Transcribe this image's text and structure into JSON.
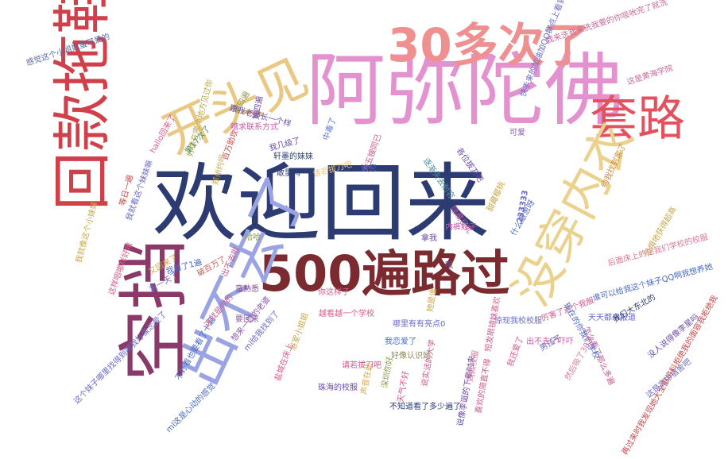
{
  "words": [
    {
      "text": "欢迎回来",
      "color": "#2c3b72"
    },
    {
      "text": "阿弥陀佛",
      "color": "#e492cf"
    },
    {
      "text": "500遍路过",
      "color": "#7b2a2f"
    },
    {
      "text": "出不去了",
      "color": "#9aa4e4"
    },
    {
      "text": "空挡",
      "color": "#8a3968"
    },
    {
      "text": "回款拖鞋",
      "color": "#d0404a"
    },
    {
      "text": "开头见",
      "color": "#eac882"
    },
    {
      "text": "30多次了",
      "color": "#f08f8f"
    },
    {
      "text": "套路",
      "color": "#e4515e"
    },
    {
      "text": "没穿内衣",
      "color": "#ead28e"
    },
    {
      "text": "感觉这个小姐姐蛮可爱的",
      "color": "#5a6aa8"
    },
    {
      "text": "快手来的加油加QQ群点上看到的",
      "color": "#6a6ac8"
    },
    {
      "text": "我来洗我来洗我要的你吸吮完了就洗",
      "color": "#c86a9a"
    },
    {
      "text": "这是黄海学院",
      "color": "#c86a9a"
    },
    {
      "text": "约我找到家了",
      "color": "#d08a3a"
    },
    {
      "text": "第四遍",
      "color": "#8a9a4a"
    },
    {
      "text": "跟我老婆长一个样",
      "color": "#6a4aa8"
    },
    {
      "text": "嘈求联系方式",
      "color": "#c85aa8"
    },
    {
      "text": "好像在哪个地方见过你",
      "color": "#b8a84a"
    },
    {
      "text": "我几级了",
      "color": "#6a4aa8"
    },
    {
      "text": "中毒了",
      "color": "#5a7ad8"
    },
    {
      "text": "可爱",
      "color": "#8a5aa8"
    },
    {
      "text": "轩墨的妹妹",
      "color": "#2c3b72"
    },
    {
      "text": "hallo回来了",
      "color": "#d85a8a"
    },
    {
      "text": "第17次了",
      "color": "#4a8a5a"
    },
    {
      "text": "百万助攻",
      "color": "#c8484a"
    },
    {
      "text": "方五嫂同已",
      "color": "#c85a8a"
    },
    {
      "text": "逐渐失去耐容",
      "color": "#4a8a9a"
    },
    {
      "text": "各位拔刀吧",
      "color": "#6a4aa8"
    },
    {
      "text": "敢里吗",
      "color": "#2c3b72"
    },
    {
      "text": "请若拔刀吧",
      "color": "#eac882"
    },
    {
      "text": "讲究",
      "color": "#4a6ac8"
    },
    {
      "text": "隐藏巨乳",
      "color": "#c85aa8"
    },
    {
      "text": "甜藏樱桃",
      "color": "#c8a84a"
    },
    {
      "text": "什么意思呀",
      "color": "#4a6ac8"
    },
    {
      "text": "233333",
      "color": "#6a6ac8"
    },
    {
      "text": "内裤好子",
      "color": "#c85aa8"
    },
    {
      "text": "哈哈",
      "color": "#8a9a4a"
    },
    {
      "text": "拿我",
      "color": "#6a4aa8"
    },
    {
      "text": "后面床上的是我们学校的校服",
      "color": "#d87a9a"
    },
    {
      "text": "谁可以给我这个妹子QQ啊我想养她",
      "color": "#4a6ac8"
    },
    {
      "text": "我看了1遍",
      "color": "#4a6ac8"
    },
    {
      "text": "出不去啦",
      "color": "#c85a8a"
    },
    {
      "text": "又回来了",
      "color": "#c8a84a"
    },
    {
      "text": "破百万了",
      "color": "#c85a5a"
    },
    {
      "text": "看一天了",
      "color": "#6a6ac8"
    },
    {
      "text": "越看越一个学校",
      "color": "#d85a8a"
    },
    {
      "text": "这样咽哪样好难",
      "color": "#d85a8a"
    },
    {
      "text": "惊现我校校服",
      "color": "#6a6ac8"
    },
    {
      "text": "好像认识她",
      "color": "#8a8a5a"
    },
    {
      "text": "我恋爱了",
      "color": "#4a6ac8"
    },
    {
      "text": "哪里有有亮点0",
      "color": "#6a6ac8"
    },
    {
      "text": "这个妹子哪里找得到啊我好像恋爱了",
      "color": "#6a6ac8"
    },
    {
      "text": "我就像这个小妹妹",
      "color": "#c8a84a"
    },
    {
      "text": "我还爱了",
      "color": "#d85a8a"
    },
    {
      "text": "男孩子",
      "color": "#6a6ac8"
    },
    {
      "text": "厉害了这个我服",
      "color": "#d85a8a"
    },
    {
      "text": "出不去了吓吓",
      "color": "#c85aa8"
    },
    {
      "text": "怎么看了那么多遍",
      "color": "#c85a8a"
    },
    {
      "text": "天天都来报道",
      "color": "#6a6ac8"
    },
    {
      "text": "现在的你我们学校",
      "color": "#4a6ac8"
    },
    {
      "text": "我们大东北的",
      "color": "#2c3b72"
    },
    {
      "text": "没人说得像李星吗",
      "color": "#6a4aa8"
    },
    {
      "text": "这是高中宿舍吧",
      "color": "#6a6ac8"
    },
    {
      "text": "然后吸了30几",
      "color": "#d87a9a"
    },
    {
      "text": "再过来时我发现她大全部资料拒绝我的面容我拒绝我",
      "color": "#c8484a"
    },
    {
      "text": "恐惧地获得超高",
      "color": "#c8a84a"
    },
    {
      "text": "哦",
      "color": "#6a4aa8"
    },
    {
      "text": "蛮熟悉",
      "color": "#8a4a8a"
    },
    {
      "text": "不好看也要看了十遍",
      "color": "#4a6ac8"
    },
    {
      "text": "想来一口的老婆",
      "color": "#8a5aa8"
    },
    {
      "text": "ml给我找到了",
      "color": "#6a6ac8"
    },
    {
      "text": "ml这是心动的感觉",
      "color": "#4a6ac8"
    },
    {
      "text": "我就看这个妹妹嘛",
      "color": "#6a6ac8"
    },
    {
      "text": "浴室小姐姐",
      "color": "#c8a84a"
    },
    {
      "text": "盐城在床上",
      "color": "#d85a8a"
    },
    {
      "text": "珠海的校服",
      "color": "#6a4aa8"
    },
    {
      "text": "深圳你好",
      "color": "#8a9a4a"
    },
    {
      "text": "请若拔刀吧",
      "color": "#c85a8a"
    },
    {
      "text": "声音在此",
      "color": "#d8a84a"
    },
    {
      "text": "天气不好",
      "color": "#d85a8a"
    },
    {
      "text": "说实话的大学",
      "color": "#c85a8a"
    },
    {
      "text": "不知道看了多少遍了",
      "color": "#2c3b72"
    },
    {
      "text": "说像李诞的下辈时来",
      "color": "#6a4aa8"
    },
    {
      "text": "喜欢的简直不得",
      "color": "#c85a8a"
    },
    {
      "text": "短发眼镜妹喜欢",
      "color": "#d85a8a"
    },
    {
      "text": "同款校服",
      "color": "#d87a9a"
    },
    {
      "text": "她是谁",
      "color": "#c8a84a"
    },
    {
      "text": "第四遍",
      "color": "#6a4aa8"
    },
    {
      "text": "要回来",
      "color": "#8a5aa8"
    },
    {
      "text": "这就是你的",
      "color": "#c85a8a"
    },
    {
      "text": "你这样子",
      "color": "#d85a8a"
    },
    {
      "text": "等日一遍",
      "color": "#c8484a"
    },
    {
      "text": "郑州约吗",
      "color": "#c8a84a"
    }
  ]
}
